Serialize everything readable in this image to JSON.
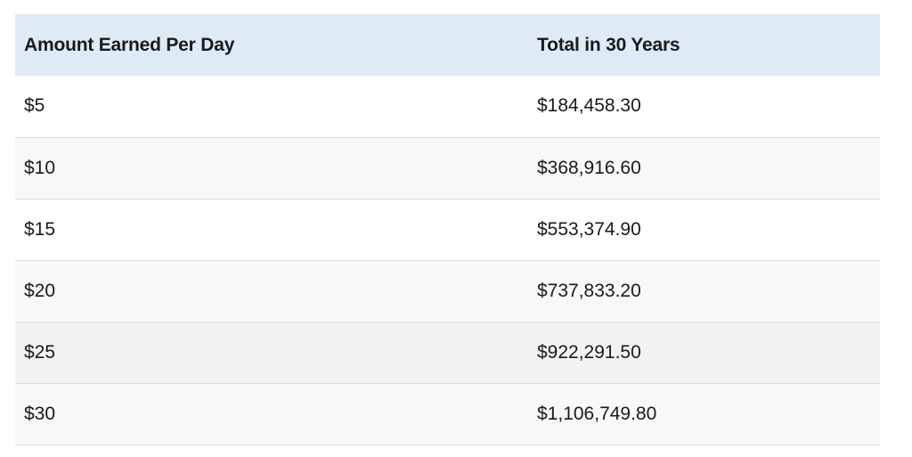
{
  "table": {
    "headers": [
      "Amount Earned Per Day",
      "Total in 30 Years"
    ],
    "rows": [
      [
        "$5",
        "$184,458.30"
      ],
      [
        "$10",
        "$368,916.60"
      ],
      [
        "$15",
        "$553,374.90"
      ],
      [
        "$20",
        "$737,833.20"
      ],
      [
        "$25",
        "$922,291.50"
      ],
      [
        "$30",
        "$1,106,749.80"
      ]
    ]
  },
  "colors": {
    "header_background": "#deebf6",
    "row_white": "#ffffff",
    "row_light": "#f8f8f8",
    "row_grey": "#f2f2f2",
    "divider": "#dcdcdc",
    "text": "#1a1a1a"
  }
}
